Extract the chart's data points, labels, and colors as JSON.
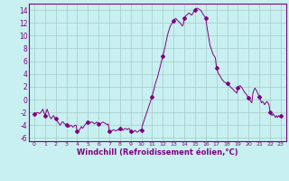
{
  "title": "",
  "xlabel": "Windchill (Refroidissement éolien,°C)",
  "ylabel": "",
  "bg_color": "#c8f0f0",
  "grid_color": "#a8c8c8",
  "line_color": "#800080",
  "marker_color": "#800080",
  "xlim": [
    -0.5,
    23.5
  ],
  "ylim": [
    -6.5,
    15.0
  ],
  "yticks": [
    -6,
    -4,
    -2,
    0,
    2,
    4,
    6,
    8,
    10,
    12,
    14
  ],
  "xticks": [
    0,
    1,
    2,
    3,
    4,
    5,
    6,
    7,
    8,
    9,
    10,
    11,
    12,
    13,
    14,
    15,
    16,
    17,
    18,
    19,
    20,
    21,
    22,
    23
  ],
  "x": [
    0,
    0.1,
    0.2,
    0.3,
    0.4,
    0.5,
    0.6,
    0.7,
    0.8,
    0.9,
    1.0,
    1.1,
    1.2,
    1.3,
    1.4,
    1.5,
    1.6,
    1.7,
    1.8,
    1.9,
    2.0,
    2.1,
    2.2,
    2.3,
    2.4,
    2.5,
    2.6,
    2.7,
    2.8,
    2.9,
    3.0,
    3.1,
    3.2,
    3.3,
    3.4,
    3.5,
    3.6,
    3.7,
    3.8,
    3.9,
    4.0,
    4.1,
    4.2,
    4.3,
    4.4,
    4.5,
    4.6,
    4.7,
    4.8,
    4.9,
    5.0,
    5.1,
    5.2,
    5.3,
    5.4,
    5.5,
    5.6,
    5.7,
    5.8,
    5.9,
    6.0,
    6.1,
    6.2,
    6.3,
    6.4,
    6.5,
    6.6,
    6.7,
    6.8,
    6.9,
    7.0,
    7.1,
    7.2,
    7.3,
    7.4,
    7.5,
    7.6,
    7.7,
    7.8,
    7.9,
    8.0,
    8.1,
    8.2,
    8.3,
    8.4,
    8.5,
    8.6,
    8.7,
    8.8,
    8.9,
    9.0,
    9.1,
    9.2,
    9.3,
    9.4,
    9.5,
    9.6,
    9.7,
    9.8,
    9.9,
    10.0,
    10.1,
    10.2,
    10.3,
    10.4,
    10.5,
    10.6,
    10.7,
    10.8,
    10.9,
    11.0,
    11.1,
    11.2,
    11.3,
    11.4,
    11.5,
    11.6,
    11.7,
    11.8,
    11.9,
    12.0,
    12.1,
    12.2,
    12.3,
    12.4,
    12.5,
    12.6,
    12.7,
    12.8,
    12.9,
    13.0,
    13.1,
    13.2,
    13.3,
    13.4,
    13.5,
    13.6,
    13.7,
    13.8,
    13.9,
    14.0,
    14.1,
    14.2,
    14.3,
    14.4,
    14.5,
    14.6,
    14.7,
    14.8,
    14.9,
    15.0,
    15.1,
    15.2,
    15.3,
    15.4,
    15.5,
    15.6,
    15.7,
    15.8,
    15.9,
    16.0,
    16.1,
    16.2,
    16.3,
    16.4,
    16.5,
    16.6,
    16.7,
    16.8,
    16.9,
    17.0,
    17.1,
    17.2,
    17.3,
    17.4,
    17.5,
    17.6,
    17.7,
    17.8,
    17.9,
    18.0,
    18.1,
    18.2,
    18.3,
    18.4,
    18.5,
    18.6,
    18.7,
    18.8,
    18.9,
    19.0,
    19.1,
    19.2,
    19.3,
    19.4,
    19.5,
    19.6,
    19.7,
    19.8,
    19.9,
    20.0,
    20.1,
    20.2,
    20.3,
    20.4,
    20.5,
    20.6,
    20.7,
    20.8,
    20.9,
    21.0,
    21.1,
    21.2,
    21.3,
    21.4,
    21.5,
    21.6,
    21.7,
    21.8,
    21.9,
    22.0,
    22.1,
    22.2,
    22.3,
    22.4,
    22.5,
    22.6,
    22.7,
    22.8,
    22.9,
    23.0
  ],
  "y": [
    -2.2,
    -2.3,
    -2.1,
    -2.0,
    -2.1,
    -2.2,
    -2.0,
    -1.8,
    -1.5,
    -2.0,
    -2.5,
    -2.0,
    -1.5,
    -2.0,
    -2.5,
    -2.8,
    -3.0,
    -2.7,
    -2.5,
    -2.8,
    -3.0,
    -3.2,
    -3.5,
    -3.7,
    -4.0,
    -3.8,
    -3.5,
    -3.5,
    -3.8,
    -3.8,
    -4.0,
    -4.2,
    -4.3,
    -4.2,
    -4.0,
    -4.1,
    -4.3,
    -4.2,
    -4.0,
    -4.0,
    -5.0,
    -5.2,
    -4.8,
    -4.5,
    -4.2,
    -4.5,
    -4.3,
    -4.0,
    -3.8,
    -3.7,
    -3.5,
    -3.6,
    -3.7,
    -3.5,
    -3.5,
    -3.6,
    -3.8,
    -3.7,
    -3.5,
    -3.6,
    -3.8,
    -4.0,
    -3.8,
    -3.6,
    -3.5,
    -3.6,
    -3.7,
    -3.8,
    -3.9,
    -3.8,
    -5.0,
    -5.2,
    -5.0,
    -4.8,
    -4.7,
    -4.8,
    -4.9,
    -4.8,
    -4.7,
    -4.8,
    -4.5,
    -4.6,
    -4.7,
    -4.8,
    -4.6,
    -4.5,
    -4.6,
    -4.7,
    -4.5,
    -4.6,
    -5.0,
    -5.2,
    -5.1,
    -5.0,
    -4.8,
    -5.0,
    -5.1,
    -5.0,
    -4.8,
    -4.7,
    -4.8,
    -4.0,
    -3.5,
    -3.0,
    -2.5,
    -2.0,
    -1.5,
    -1.0,
    -0.5,
    0.0,
    0.5,
    1.2,
    1.8,
    2.5,
    3.0,
    3.5,
    4.2,
    4.8,
    5.5,
    6.2,
    6.8,
    7.5,
    8.2,
    9.0,
    9.8,
    10.5,
    11.0,
    11.5,
    11.8,
    12.0,
    12.3,
    12.5,
    12.7,
    12.5,
    12.3,
    12.2,
    12.0,
    11.8,
    11.5,
    11.7,
    12.8,
    13.0,
    13.2,
    13.3,
    13.5,
    13.5,
    13.3,
    13.2,
    13.5,
    13.8,
    14.0,
    14.2,
    14.3,
    14.2,
    14.1,
    14.0,
    13.8,
    13.5,
    13.2,
    13.0,
    12.8,
    11.5,
    10.5,
    9.5,
    8.5,
    8.0,
    7.5,
    7.0,
    6.8,
    6.5,
    5.0,
    4.5,
    4.0,
    3.8,
    3.5,
    3.2,
    3.0,
    2.8,
    2.7,
    2.6,
    2.5,
    2.3,
    2.2,
    2.0,
    1.8,
    1.7,
    1.5,
    1.3,
    1.2,
    1.0,
    1.8,
    2.0,
    2.2,
    2.0,
    1.8,
    1.5,
    1.2,
    1.0,
    0.8,
    0.5,
    0.3,
    0.0,
    -0.3,
    -0.5,
    1.0,
    1.5,
    1.8,
    1.5,
    1.2,
    0.8,
    0.5,
    0.0,
    -0.5,
    -0.3,
    -0.5,
    -0.8,
    -0.5,
    -0.3,
    -0.5,
    -0.8,
    -2.0,
    -2.3,
    -2.5,
    -2.2,
    -2.5,
    -2.8,
    -2.5,
    -2.8,
    -2.5,
    -2.7,
    -2.5
  ],
  "marker_hours": [
    0,
    1,
    2,
    3,
    4,
    5,
    6,
    7,
    8,
    9,
    10,
    11,
    12,
    13,
    14,
    15,
    16,
    17,
    18,
    19,
    20,
    21,
    22,
    23
  ],
  "marker_values": [
    -2.2,
    -2.5,
    -3.0,
    -4.0,
    -5.0,
    -3.5,
    -3.8,
    -5.0,
    -4.5,
    -5.0,
    -4.8,
    0.5,
    6.8,
    12.3,
    12.8,
    14.0,
    12.8,
    5.0,
    2.5,
    1.8,
    0.3,
    0.5,
    -2.0,
    -2.5
  ]
}
